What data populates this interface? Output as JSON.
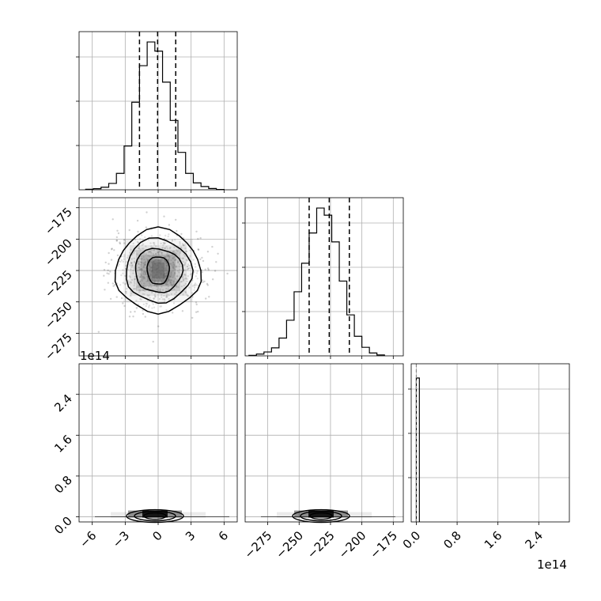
{
  "chart_data": [
    {
      "panel": "hist-param1",
      "type": "bar",
      "title": "",
      "xlabel": "",
      "ylabel": "",
      "xlim": [
        -7.2,
        7.2
      ],
      "grid": true,
      "quantiles": [
        -1.7,
        -0.05,
        1.6
      ],
      "bins": [
        -6.6,
        -5.9,
        -5.2,
        -4.5,
        -3.8,
        -3.1,
        -2.4,
        -1.7,
        -1.0,
        -0.3,
        0.4,
        1.1,
        1.8,
        2.5,
        3.2,
        3.9,
        4.6,
        5.3,
        6.0
      ],
      "counts": [
        3,
        6,
        14,
        35,
        90,
        240,
        480,
        680,
        810,
        760,
        590,
        380,
        205,
        90,
        38,
        18,
        7,
        2
      ]
    },
    {
      "panel": "hist-param2",
      "type": "bar",
      "title": "",
      "xlabel": "",
      "ylabel": "",
      "xlim": [
        -293,
        -167
      ],
      "grid": true,
      "quantiles": [
        -242,
        -226,
        -210
      ],
      "bins": [
        -290,
        -284,
        -278,
        -272,
        -266,
        -260,
        -254,
        -248,
        -242,
        -236,
        -230,
        -224,
        -218,
        -212,
        -206,
        -200,
        -194,
        -188,
        -182
      ],
      "counts": [
        3,
        10,
        22,
        45,
        100,
        200,
        360,
        520,
        690,
        830,
        790,
        640,
        420,
        230,
        110,
        48,
        16,
        5
      ]
    },
    {
      "panel": "hist-param3",
      "type": "bar",
      "title": "",
      "xlabel": "",
      "ylabel": "",
      "xlim": [
        -10000000000000.0,
        300000000000000.0
      ],
      "x_offset_label": "1e14",
      "grid": true,
      "quantiles": [
        0.0,
        0.0,
        0.0
      ],
      "bins": [
        0.0,
        10000000000000.0
      ],
      "counts": [
        1
      ]
    },
    {
      "panel": "2d-param1-param2",
      "type": "scatter",
      "xlim": [
        -7.2,
        7.2
      ],
      "ylim": [
        -293,
        -167
      ],
      "center": [
        0,
        -225
      ],
      "spread": [
        2.0,
        14
      ],
      "contour_levels": [
        "0.5",
        "1.0",
        "1.5",
        "2.0"
      ]
    },
    {
      "panel": "2d-param1-param3",
      "type": "scatter",
      "xlim": [
        -7.2,
        7.2
      ],
      "ylim": [
        -10000000000000.0,
        300000000000000.0
      ],
      "y_offset_label": "1e14"
    },
    {
      "panel": "2d-param2-param3",
      "type": "scatter",
      "xlim": [
        -293,
        -167
      ],
      "ylim": [
        -10000000000000.0,
        300000000000000.0
      ]
    }
  ],
  "ticks": {
    "col1_x": [
      "−6",
      "−3",
      "0",
      "3",
      "6"
    ],
    "col1_x_values": [
      -6,
      -3,
      0,
      3,
      6
    ],
    "col2_x": [
      "−275",
      "−250",
      "−225",
      "−200",
      "−175"
    ],
    "col2_x_values": [
      -275,
      -250,
      -225,
      -200,
      -175
    ],
    "col3_x": [
      "0.0",
      "0.8",
      "1.6",
      "2.4"
    ],
    "col3_x_values": [
      0.0,
      0.8,
      1.6,
      2.4
    ],
    "row2_y": [
      "−175",
      "−200",
      "−225",
      "−250",
      "−275"
    ],
    "row2_y_values": [
      -175,
      -200,
      -225,
      -250,
      -275
    ],
    "row3_y": [
      "2.4",
      "1.6",
      "0.8",
      "0.0"
    ],
    "row3_y_values": [
      2.4,
      1.6,
      0.8,
      0.0
    ],
    "hist_y_values": [
      0.28,
      0.56,
      0.84
    ],
    "offset_y": "1e14",
    "offset_x": "1e14"
  }
}
